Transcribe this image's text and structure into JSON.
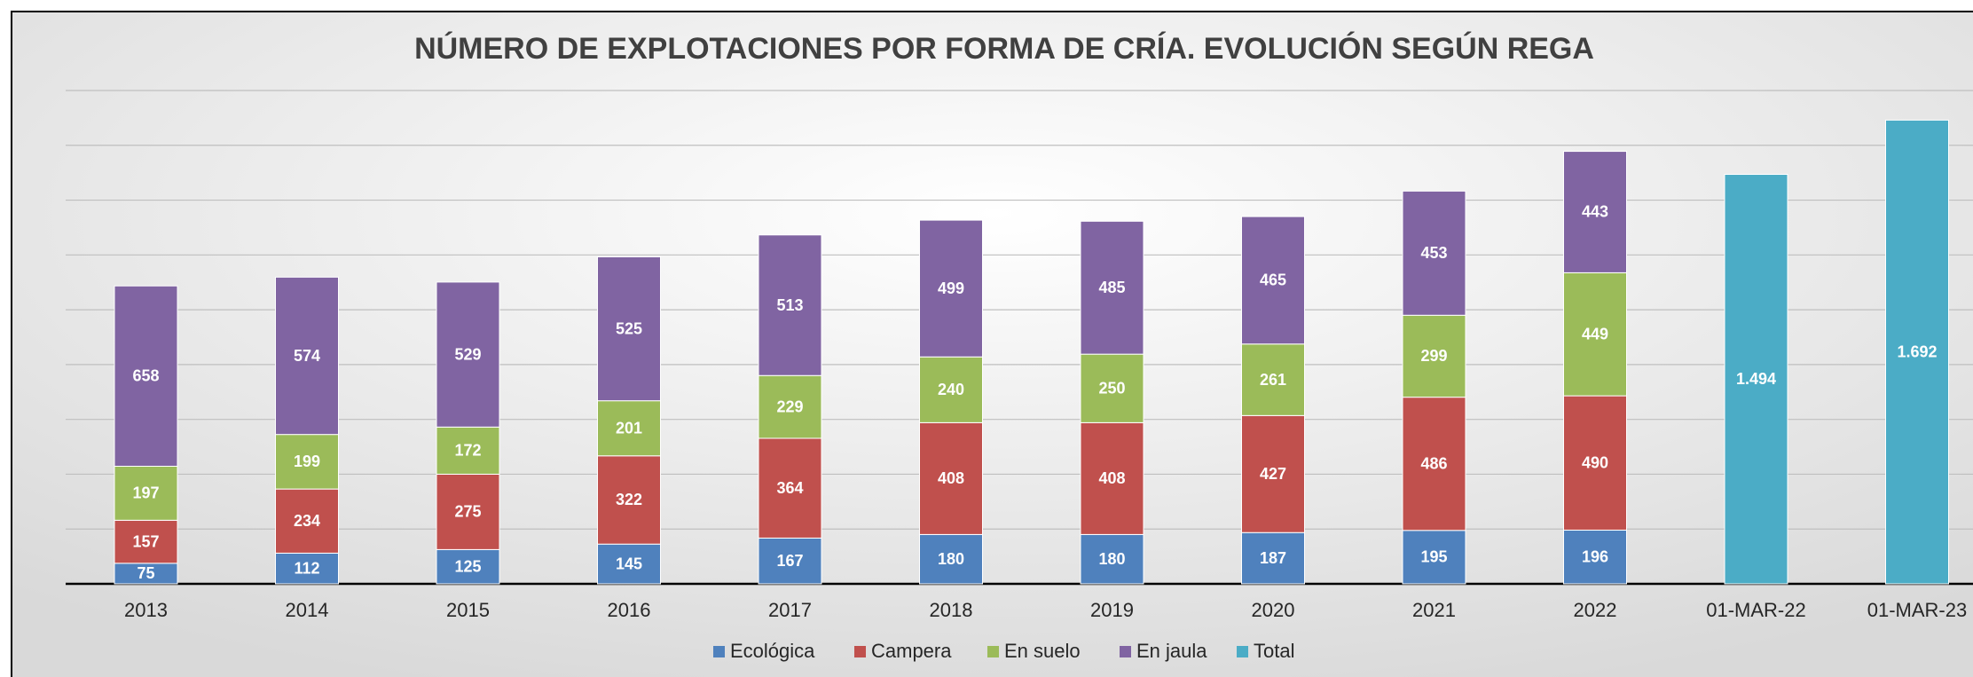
{
  "chart_data": {
    "type": "stacked_bar",
    "title": "NÚMERO DE EXPLOTACIONES POR FORMA DE CRÍA. EVOLUCIÓN SEGÚN REGA",
    "categories": [
      "2013",
      "2014",
      "2015",
      "2016",
      "2017",
      "2018",
      "2019",
      "2020",
      "2021",
      "2022",
      "01-MAR-22",
      "01-MAR-23"
    ],
    "series": [
      {
        "name": "Ecológica",
        "color": "#4f81bd",
        "values": [
          75,
          112,
          125,
          145,
          167,
          180,
          180,
          187,
          195,
          196,
          null,
          null
        ]
      },
      {
        "name": "Campera",
        "color": "#c0504d",
        "values": [
          157,
          234,
          275,
          322,
          364,
          408,
          408,
          427,
          486,
          490,
          null,
          null
        ]
      },
      {
        "name": "En suelo",
        "color": "#9bbb59",
        "values": [
          197,
          199,
          172,
          201,
          229,
          240,
          250,
          261,
          299,
          449,
          null,
          null
        ]
      },
      {
        "name": "En jaula",
        "color": "#8064a2",
        "values": [
          658,
          574,
          529,
          525,
          513,
          499,
          485,
          465,
          453,
          443,
          null,
          null
        ]
      },
      {
        "name": "Total",
        "color": "#4bacc6",
        "values": [
          null,
          null,
          null,
          null,
          null,
          null,
          null,
          null,
          null,
          null,
          1494,
          1692
        ],
        "value_labels": [
          null,
          null,
          null,
          null,
          null,
          null,
          null,
          null,
          null,
          null,
          "1.494",
          "1.692"
        ]
      }
    ],
    "ylim": [
      0,
      1800
    ],
    "yticks": [
      0,
      200,
      400,
      600,
      800,
      1000,
      1200,
      1400,
      1600,
      1800
    ],
    "grid": true,
    "legend": "bottom"
  }
}
